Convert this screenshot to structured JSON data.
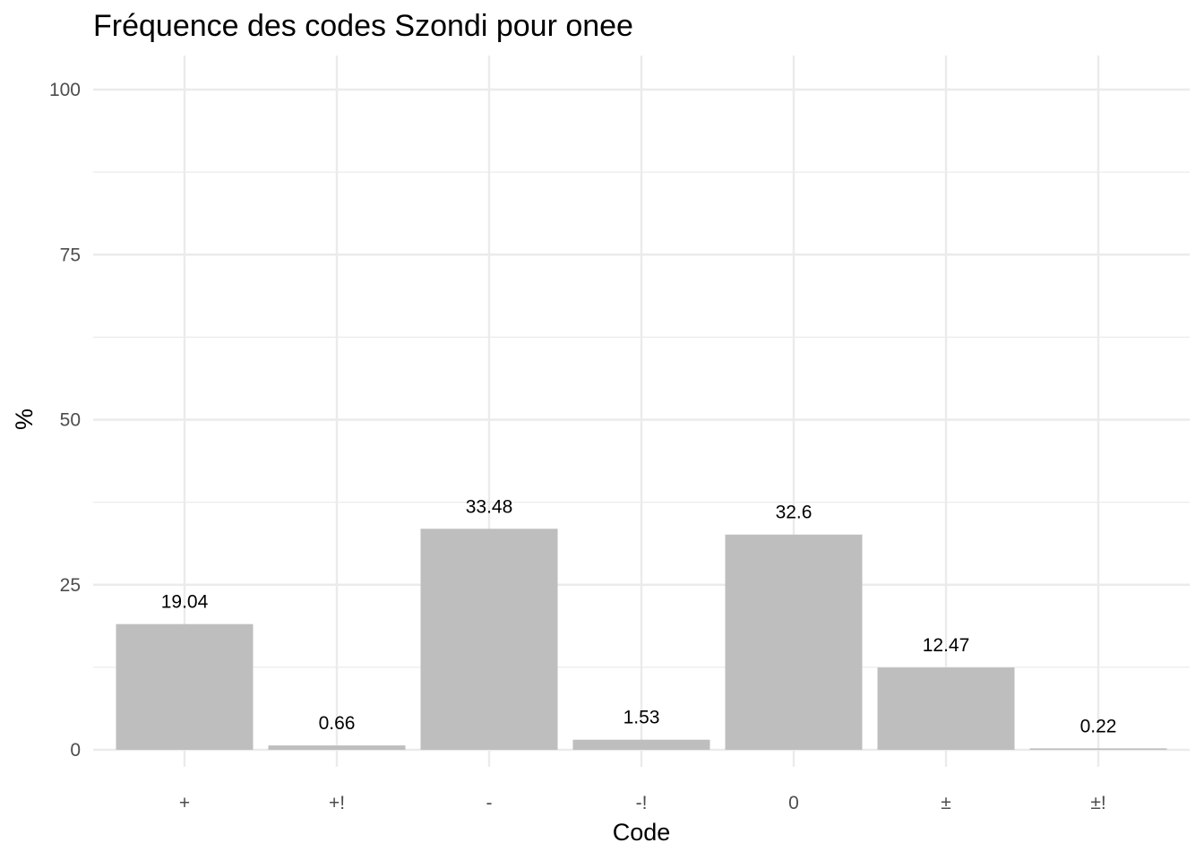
{
  "chart_data": {
    "type": "bar",
    "title": "Fréquence des codes Szondi pour onee",
    "xlabel": "Code",
    "ylabel": "%",
    "categories": [
      "+",
      "+!",
      "-",
      "-!",
      "0",
      "±",
      "±!"
    ],
    "values": [
      19.04,
      0.66,
      33.48,
      1.53,
      32.6,
      12.47,
      0.22
    ],
    "data_labels": [
      "19.04",
      "0.66",
      "33.48",
      "1.53",
      "32.6",
      "12.47",
      "0.22"
    ],
    "ylim": [
      0,
      100
    ],
    "y_ticks": [
      0,
      25,
      50,
      75,
      100
    ],
    "y_tick_labels": [
      "0",
      "25",
      "50",
      "75",
      "100"
    ],
    "grid": true,
    "bar_color": "#bebebe",
    "grid_color": "#ebebeb"
  }
}
